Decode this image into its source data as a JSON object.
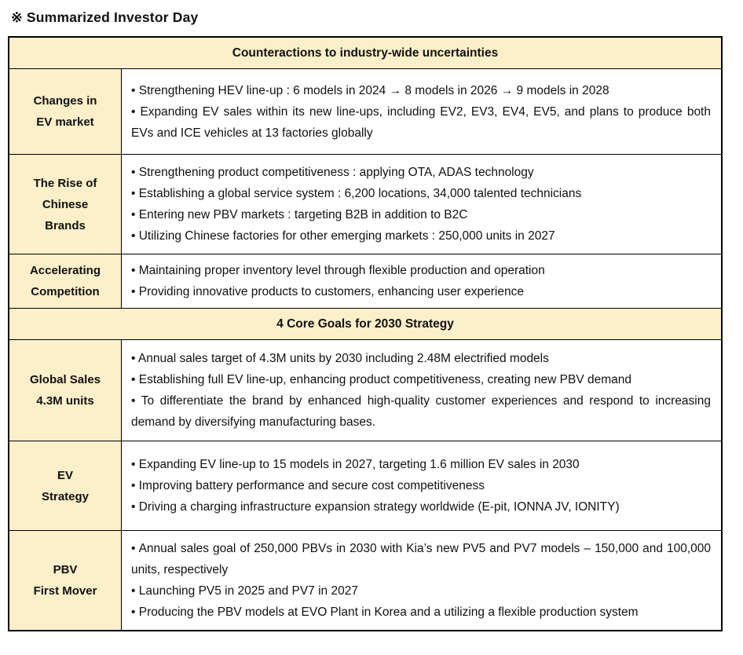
{
  "page": {
    "title": "※ Summarized Investor Day"
  },
  "colors": {
    "cell_background": "#fcefc9",
    "border": "#000000",
    "text": "#111111"
  },
  "table": {
    "sections": [
      {
        "header": "Counteractions to industry-wide uncertainties",
        "rows": [
          {
            "label": "Changes in\nEV market",
            "bullets": [
              "• Strengthening HEV line-up : 6 models in 2024 → 8 models in 2026 → 9 models in 2028",
              "• Expanding EV sales within its new line-ups, including EV2, EV3, EV4, EV5, and plans to produce both EVs and ICE vehicles at 13 factories globally"
            ]
          },
          {
            "label": "The Rise of\nChinese\nBrands",
            "bullets": [
              "• Strengthening product competitiveness : applying OTA, ADAS technology",
              "• Establishing a global service system : 6,200 locations, 34,000 talented technicians",
              "• Entering new PBV markets : targeting B2B in addition to B2C",
              "• Utilizing Chinese factories for other emerging markets : 250,000 units in 2027"
            ]
          },
          {
            "label": "Accelerating\nCompetition",
            "bullets": [
              "• Maintaining proper inventory level through flexible production and operation",
              "• Providing innovative products to customers, enhancing user experience"
            ]
          }
        ]
      },
      {
        "header": "4 Core Goals for 2030 Strategy",
        "rows": [
          {
            "label": "Global Sales\n4.3M units",
            "bullets": [
              "• Annual sales target of 4.3M units by 2030 including 2.48M electrified models",
              "• Establishing full EV line-up, enhancing product competitiveness, creating new PBV demand",
              "• To differentiate the brand by enhanced high-quality customer experiences and respond to increasing demand by diversifying manufacturing bases."
            ]
          },
          {
            "label": "EV\nStrategy",
            "bullets": [
              "• Expanding EV line-up to 15 models in 2027, targeting 1.6 million EV sales in 2030",
              "• Improving battery performance and secure cost competitiveness",
              "• Driving a charging infrastructure expansion strategy worldwide (E-pit, IONNA JV, IONITY)"
            ]
          },
          {
            "label": "PBV\nFirst Mover",
            "bullets": [
              "• Annual sales goal of 250,000 PBVs in 2030 with Kia’s new PV5 and PV7 models – 150,000 and 100,000 units, respectively",
              "• Launching PV5 in 2025 and PV7 in 2027",
              "• Producing the PBV models at EVO Plant in Korea and a utilizing a flexible production system"
            ]
          }
        ]
      }
    ]
  }
}
